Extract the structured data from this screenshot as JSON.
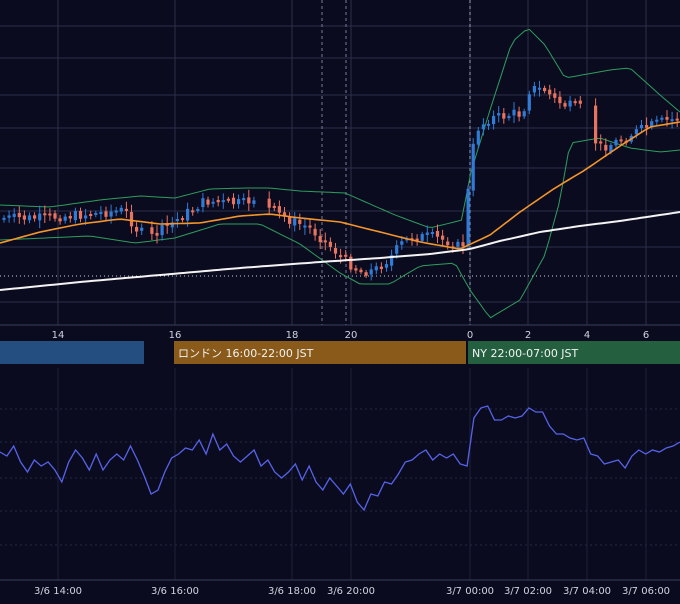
{
  "chart_data": [
    {
      "type": "candlestick",
      "panel": "price",
      "x_ticks": [
        "14",
        "16",
        "18",
        "20",
        "0",
        "2",
        "4",
        "6"
      ],
      "indicators": [
        "bollinger-bands",
        "moving-average-orange",
        "moving-average-white"
      ],
      "grid": true,
      "colors": {
        "up": "#2f7bd6",
        "down": "#e8735f",
        "ma_short": "#f2952b",
        "ma_long": "#f3f3f3",
        "bollinger": "#2e9e5e",
        "grid": "#2a2f4a"
      }
    },
    {
      "type": "table",
      "panel": "sessions",
      "sessions": [
        {
          "label": "",
          "color": "#254e80"
        },
        {
          "label": "ロンドン 16:00-22:00 JST",
          "color": "#8a5a1a"
        },
        {
          "label": "NY 22:00-07:00 JST",
          "color": "#246040"
        }
      ]
    },
    {
      "type": "line",
      "panel": "oscillator",
      "x_ticks": [
        "3/6 14:00",
        "3/6 16:00",
        "3/6 18:00",
        "3/6 20:00",
        "3/7 00:00",
        "3/7 02:00",
        "3/7 04:00",
        "3/7 06:00"
      ],
      "series": [
        {
          "values": [
            54,
            52,
            57,
            49,
            44,
            50,
            47,
            49,
            45,
            39,
            49,
            55,
            51,
            45,
            53,
            45,
            50,
            53,
            50,
            57,
            50,
            42,
            33,
            35,
            44,
            51,
            53,
            56,
            55,
            60,
            53,
            63,
            55,
            58,
            52,
            49,
            52,
            55,
            47,
            50,
            44,
            41,
            44,
            48,
            40,
            47,
            39,
            35,
            41,
            37,
            33,
            38,
            29,
            25,
            33,
            32,
            39,
            38,
            43,
            49,
            50,
            53,
            55,
            50,
            53,
            51,
            53,
            48,
            47,
            71,
            76,
            77,
            70,
            70,
            72,
            71,
            72,
            76,
            74,
            74,
            67,
            63,
            63,
            61,
            60,
            61,
            53,
            52,
            48,
            49,
            50,
            46,
            52,
            55,
            53,
            55,
            54,
            56,
            57,
            59
          ]
        }
      ],
      "grid": true,
      "colors": {
        "line": "#5663ea"
      }
    }
  ]
}
